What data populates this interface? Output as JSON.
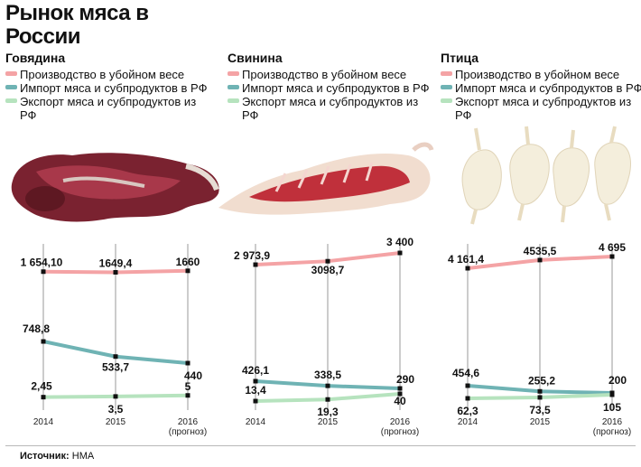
{
  "title": "Рынок мяса в России",
  "colors": {
    "production": "#f4a3a5",
    "import": "#6fb3b4",
    "export": "#b6e3be",
    "axis": "#9a9a9a"
  },
  "panels": [
    {
      "name": "Говядина",
      "legend": [
        "Производство в убойном весе",
        "Импорт мяса и субпродуктов в РФ",
        "Экспорт мяса и субпродуктов из РФ"
      ],
      "image": "beef-carcass"
    },
    {
      "name": "Свинина",
      "legend": [
        "Производство в убойном весе",
        "Импорт мяса и субпродуктов в РФ",
        "Экспорт мяса и субпродуктов из РФ"
      ],
      "image": "pork-carcass"
    },
    {
      "name": "Птица",
      "legend": [
        "Производство в убойном весе",
        "Импорт мяса и субпродуктов в РФ",
        "Экспорт мяса и субпродуктов из РФ"
      ],
      "image": "poultry-carcasses"
    }
  ],
  "chart_data": [
    {
      "type": "line",
      "title": "Говядина",
      "x": [
        "2014",
        "2015",
        "2016"
      ],
      "x_sublabels": [
        "",
        "",
        "(прогноз)"
      ],
      "series": [
        {
          "name": "Производство в убойном весе",
          "values": [
            1654.1,
            1649.4,
            1660
          ],
          "labels": [
            "1 654,10",
            "1649,4",
            "1660"
          ]
        },
        {
          "name": "Импорт мяса и субпродуктов в РФ",
          "values": [
            748.8,
            533.7,
            440
          ],
          "labels": [
            "748,8",
            "533,7",
            "440"
          ]
        },
        {
          "name": "Экспорт мяса и субпродуктов из РФ",
          "values": [
            2.45,
            3.5,
            5
          ],
          "labels": [
            "2,45",
            "3,5",
            "5"
          ]
        }
      ]
    },
    {
      "type": "line",
      "title": "Свинина",
      "x": [
        "2014",
        "2015",
        "2016"
      ],
      "x_sublabels": [
        "",
        "",
        "(прогноз)"
      ],
      "series": [
        {
          "name": "Производство в убойном весе",
          "values": [
            2973.9,
            3098.7,
            3400
          ],
          "labels": [
            "2 973,9",
            "3098,7",
            "3 400"
          ]
        },
        {
          "name": "Импорт мяса и субпродуктов в РФ",
          "values": [
            426.1,
            338.5,
            290
          ],
          "labels": [
            "426,1",
            "338,5",
            "290"
          ]
        },
        {
          "name": "Экспорт мяса и субпродуктов из РФ",
          "values": [
            13.4,
            19.3,
            40
          ],
          "labels": [
            "13,4",
            "19,3",
            "40"
          ]
        }
      ]
    },
    {
      "type": "line",
      "title": "Птица",
      "x": [
        "2014",
        "2015",
        "2016"
      ],
      "x_sublabels": [
        "",
        "",
        "(прогноз)"
      ],
      "series": [
        {
          "name": "Производство в убойном весе",
          "values": [
            4161.4,
            4535.5,
            4695
          ],
          "labels": [
            "4 161,4",
            "4535,5",
            "4 695"
          ]
        },
        {
          "name": "Импорт мяса и субпродуктов в РФ",
          "values": [
            454.6,
            255.2,
            200
          ],
          "labels": [
            "454,6",
            "255,2",
            "200"
          ]
        },
        {
          "name": "Экспорт мяса и субпродуктов из РФ",
          "values": [
            62.3,
            73.5,
            105
          ],
          "labels": [
            "62,3",
            "73,5",
            "105"
          ]
        }
      ]
    }
  ],
  "source": {
    "label": "Источник:",
    "text": "НМА"
  }
}
